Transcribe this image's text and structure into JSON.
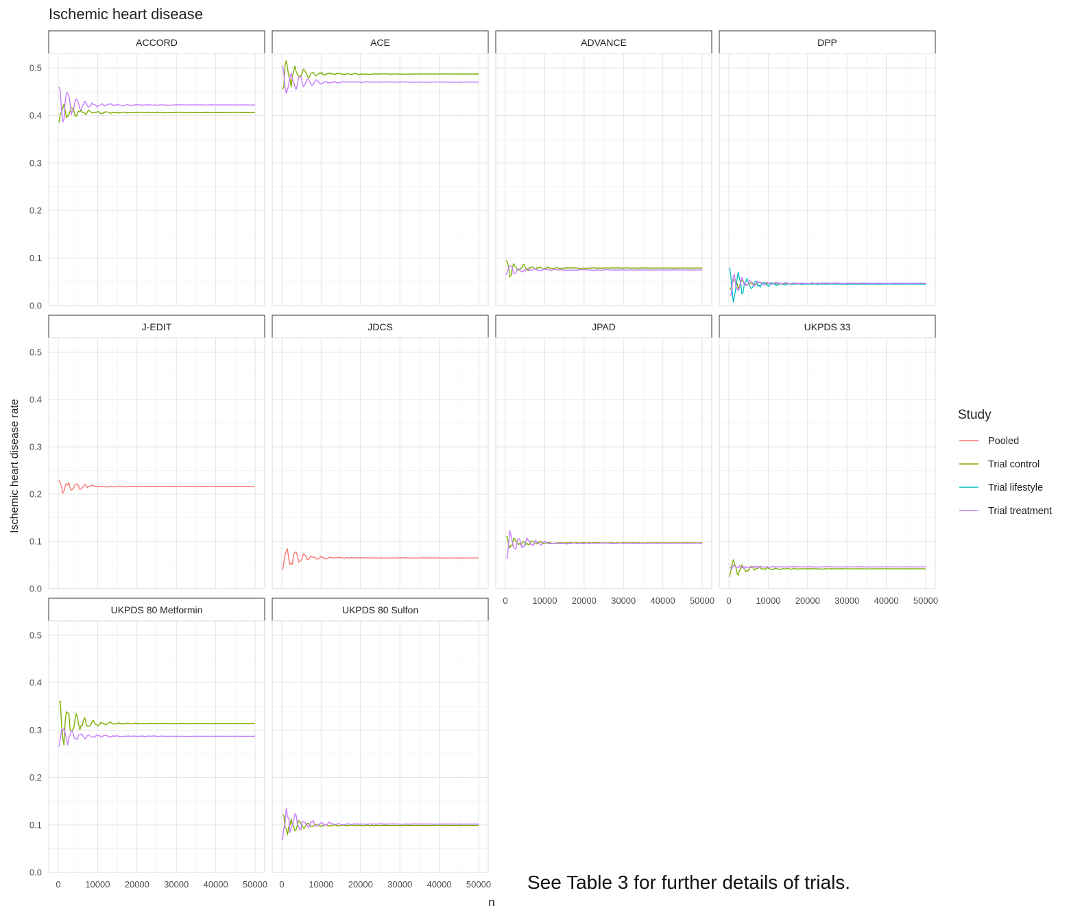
{
  "chart_data": {
    "type": "line",
    "title": "Ischemic heart disease",
    "xlabel": "n",
    "ylabel": "Ischemic heart disease rate",
    "xlim": [
      0,
      50000
    ],
    "ylim": [
      0,
      0.5
    ],
    "x_ticks": [
      0,
      10000,
      20000,
      30000,
      40000,
      50000
    ],
    "x_tick_labels": [
      "0",
      "10000",
      "20000",
      "30000",
      "40000",
      "50000"
    ],
    "y_ticks": [
      0,
      0.1,
      0.2,
      0.3,
      0.4,
      0.5
    ],
    "y_tick_labels": [
      "0.0",
      "0.1",
      "0.2",
      "0.3",
      "0.4",
      "0.5"
    ],
    "grid": true,
    "legend": {
      "title": "Study",
      "placement": "right",
      "entries": [
        {
          "name": "Pooled",
          "color": "#F8766D"
        },
        {
          "name": "Trial control",
          "color": "#7CAE00"
        },
        {
          "name": "Trial lifestyle",
          "color": "#00BFC4"
        },
        {
          "name": "Trial treatment",
          "color": "#C77CFF"
        }
      ]
    },
    "panels": [
      {
        "name": "ACCORD",
        "series": [
          {
            "name": "Trial control",
            "start": 0.385,
            "final": 0.406
          },
          {
            "name": "Trial treatment",
            "start": 0.46,
            "final": 0.422
          }
        ]
      },
      {
        "name": "ACE",
        "series": [
          {
            "name": "Trial control",
            "start": 0.455,
            "final": 0.487
          },
          {
            "name": "Trial treatment",
            "start": 0.505,
            "final": 0.47
          }
        ]
      },
      {
        "name": "ADVANCE",
        "series": [
          {
            "name": "Trial control",
            "start": 0.095,
            "final": 0.079
          },
          {
            "name": "Trial treatment",
            "start": 0.065,
            "final": 0.075
          }
        ]
      },
      {
        "name": "DPP",
        "series": [
          {
            "name": "Trial control",
            "start": 0.035,
            "final": 0.046
          },
          {
            "name": "Trial lifestyle",
            "start": 0.08,
            "final": 0.045
          },
          {
            "name": "Trial treatment",
            "start": 0.022,
            "final": 0.047
          }
        ]
      },
      {
        "name": "J-EDIT",
        "series": [
          {
            "name": "Pooled",
            "start": 0.23,
            "final": 0.216
          }
        ]
      },
      {
        "name": "JDCS",
        "series": [
          {
            "name": "Pooled",
            "start": 0.04,
            "final": 0.065
          }
        ]
      },
      {
        "name": "JPAD",
        "series": [
          {
            "name": "Trial control",
            "start": 0.11,
            "final": 0.097
          },
          {
            "name": "Trial treatment",
            "start": 0.065,
            "final": 0.096
          }
        ]
      },
      {
        "name": "UKPDS 33",
        "series": [
          {
            "name": "Trial control",
            "start": 0.025,
            "final": 0.042
          },
          {
            "name": "Trial treatment",
            "start": 0.045,
            "final": 0.046
          }
        ]
      },
      {
        "name": "UKPDS 80 Metformin",
        "series": [
          {
            "name": "Trial control",
            "start": 0.36,
            "final": 0.314
          },
          {
            "name": "Trial treatment",
            "start": 0.265,
            "final": 0.287
          }
        ]
      },
      {
        "name": "UKPDS 80 Sulfon",
        "series": [
          {
            "name": "Trial control",
            "start": 0.122,
            "final": 0.099
          },
          {
            "name": "Trial treatment",
            "start": 0.068,
            "final": 0.102
          }
        ]
      }
    ]
  },
  "footnote": "See Table 3 for further details of trials."
}
